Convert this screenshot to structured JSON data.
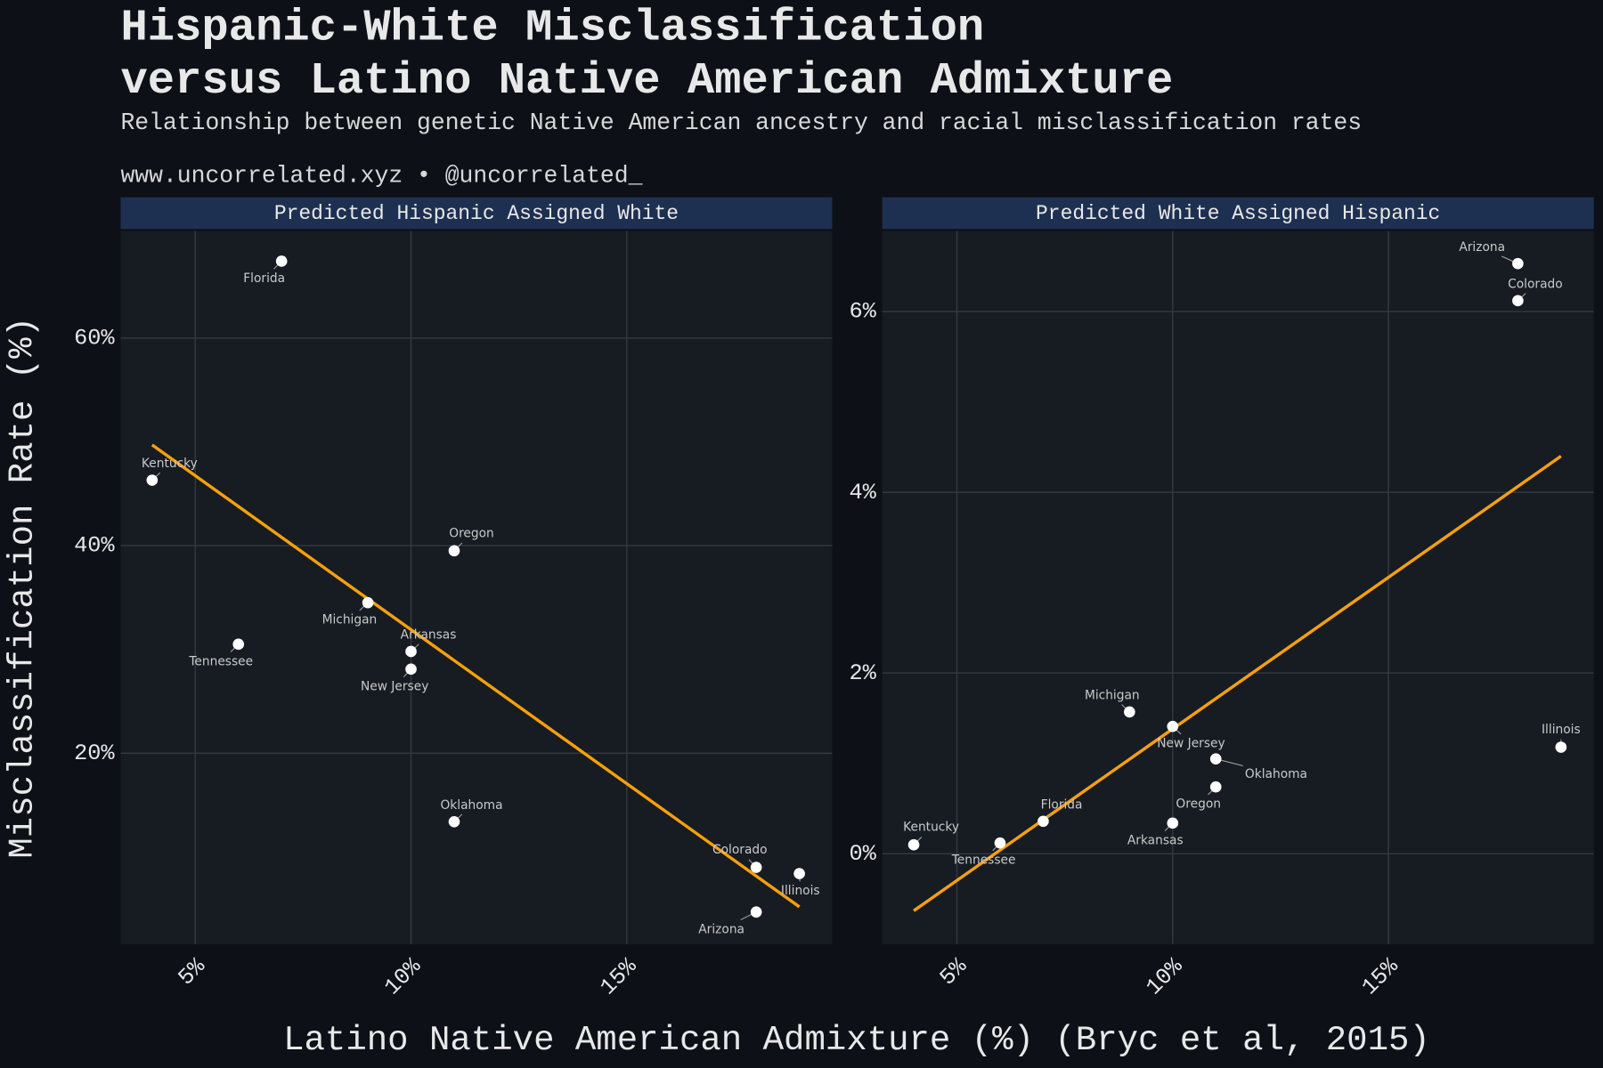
{
  "page": {
    "title": [
      "Hispanic-White Misclassification",
      "versus Latino Native American Admixture"
    ],
    "subtitle": "Relationship between genetic Native American ancestry and racial misclassification rates",
    "caption": "www.uncorrelated.xyz • @uncorrelated_",
    "x_label": "Latino Native American Admixture (%) (Bryc et al, 2015)",
    "y_label": "Misclassification Rate (%)"
  },
  "chart_data": [
    {
      "type": "scatter",
      "title": "Predicted Hispanic Assigned White",
      "labels": [
        "Florida",
        "Kentucky",
        "Oregon",
        "Michigan",
        "Tennessee",
        "Arkansas",
        "New Jersey",
        "Oklahoma",
        "Colorado",
        "Illinois",
        "Arizona"
      ],
      "x": [
        7,
        4,
        11,
        9,
        6,
        10,
        10,
        11,
        18,
        19,
        18
      ],
      "values": [
        67.4,
        46.3,
        39.5,
        34.5,
        30.5,
        29.8,
        28.1,
        13.4,
        9.0,
        8.4,
        4.7
      ],
      "color": "#ffffff",
      "trend": {
        "x": [
          4,
          19
        ],
        "values": [
          49.7,
          5.2
        ],
        "color": "#f5a00f"
      },
      "xlim": [
        3.27,
        19.76
      ],
      "ylim": [
        1.6,
        70.3
      ],
      "xticks": [
        {
          "value": 5,
          "label": "5%"
        },
        {
          "value": 10,
          "label": "10%"
        },
        {
          "value": 15,
          "label": "15%"
        }
      ],
      "yticks": [
        {
          "value": 20,
          "label": "20%"
        },
        {
          "value": 40,
          "label": "40%"
        },
        {
          "value": 60,
          "label": "60%"
        }
      ],
      "grid": true
    },
    {
      "type": "scatter",
      "title": "Predicted White Assigned Hispanic",
      "labels": [
        "Arizona",
        "Colorado",
        "Michigan",
        "New Jersey",
        "Oklahoma",
        "Oregon",
        "Illinois",
        "Kentucky",
        "Tennessee",
        "Florida",
        "Arkansas"
      ],
      "x": [
        18,
        18,
        9,
        10,
        11,
        11,
        19,
        4,
        6,
        7,
        10
      ],
      "values": [
        6.53,
        6.12,
        1.57,
        1.41,
        1.05,
        0.74,
        1.18,
        0.1,
        0.12,
        0.36,
        0.34
      ],
      "color": "#ffffff",
      "trend": {
        "x": [
          4,
          19
        ],
        "values": [
          -0.63,
          4.4
        ],
        "color": "#f5a00f"
      },
      "xlim": [
        3.27,
        19.76
      ],
      "ylim": [
        -1.0,
        6.89
      ],
      "xticks": [
        {
          "value": 5,
          "label": "5%"
        },
        {
          "value": 10,
          "label": "10%"
        },
        {
          "value": 15,
          "label": "15%"
        }
      ],
      "yticks": [
        {
          "value": 0,
          "label": "0%"
        },
        {
          "value": 2,
          "label": "2%"
        },
        {
          "value": 4,
          "label": "4%"
        },
        {
          "value": 6,
          "label": "6%"
        }
      ],
      "grid": true
    }
  ]
}
